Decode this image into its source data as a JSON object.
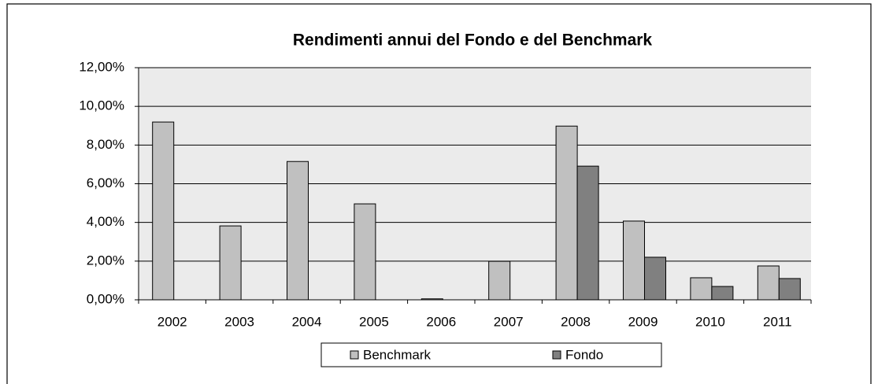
{
  "chart_data": {
    "type": "bar",
    "title": "Rendimenti annui del Fondo e del  Benchmark",
    "categories": [
      "2002",
      "2003",
      "2004",
      "2005",
      "2006",
      "2007",
      "2008",
      "2009",
      "2010",
      "2011"
    ],
    "series": [
      {
        "name": "Benchmark",
        "color": "#c0c0c0",
        "values": [
          9.19,
          3.82,
          7.15,
          4.96,
          0.05,
          1.99,
          8.98,
          4.07,
          1.14,
          1.75
        ]
      },
      {
        "name": "Fondo",
        "color": "#808080",
        "values": [
          null,
          null,
          null,
          null,
          null,
          null,
          6.91,
          2.2,
          0.69,
          1.1
        ]
      }
    ],
    "ylim": [
      0,
      12
    ],
    "yticks": [
      {
        "value": 0,
        "label": "0,00%"
      },
      {
        "value": 2,
        "label": "2,00%"
      },
      {
        "value": 4,
        "label": "4,00%"
      },
      {
        "value": 6,
        "label": "6,00%"
      },
      {
        "value": 8,
        "label": "8,00%"
      },
      {
        "value": 10,
        "label": "10,00%"
      },
      {
        "value": 12,
        "label": "12,00%"
      }
    ],
    "grid": true,
    "legend": "bottom"
  }
}
